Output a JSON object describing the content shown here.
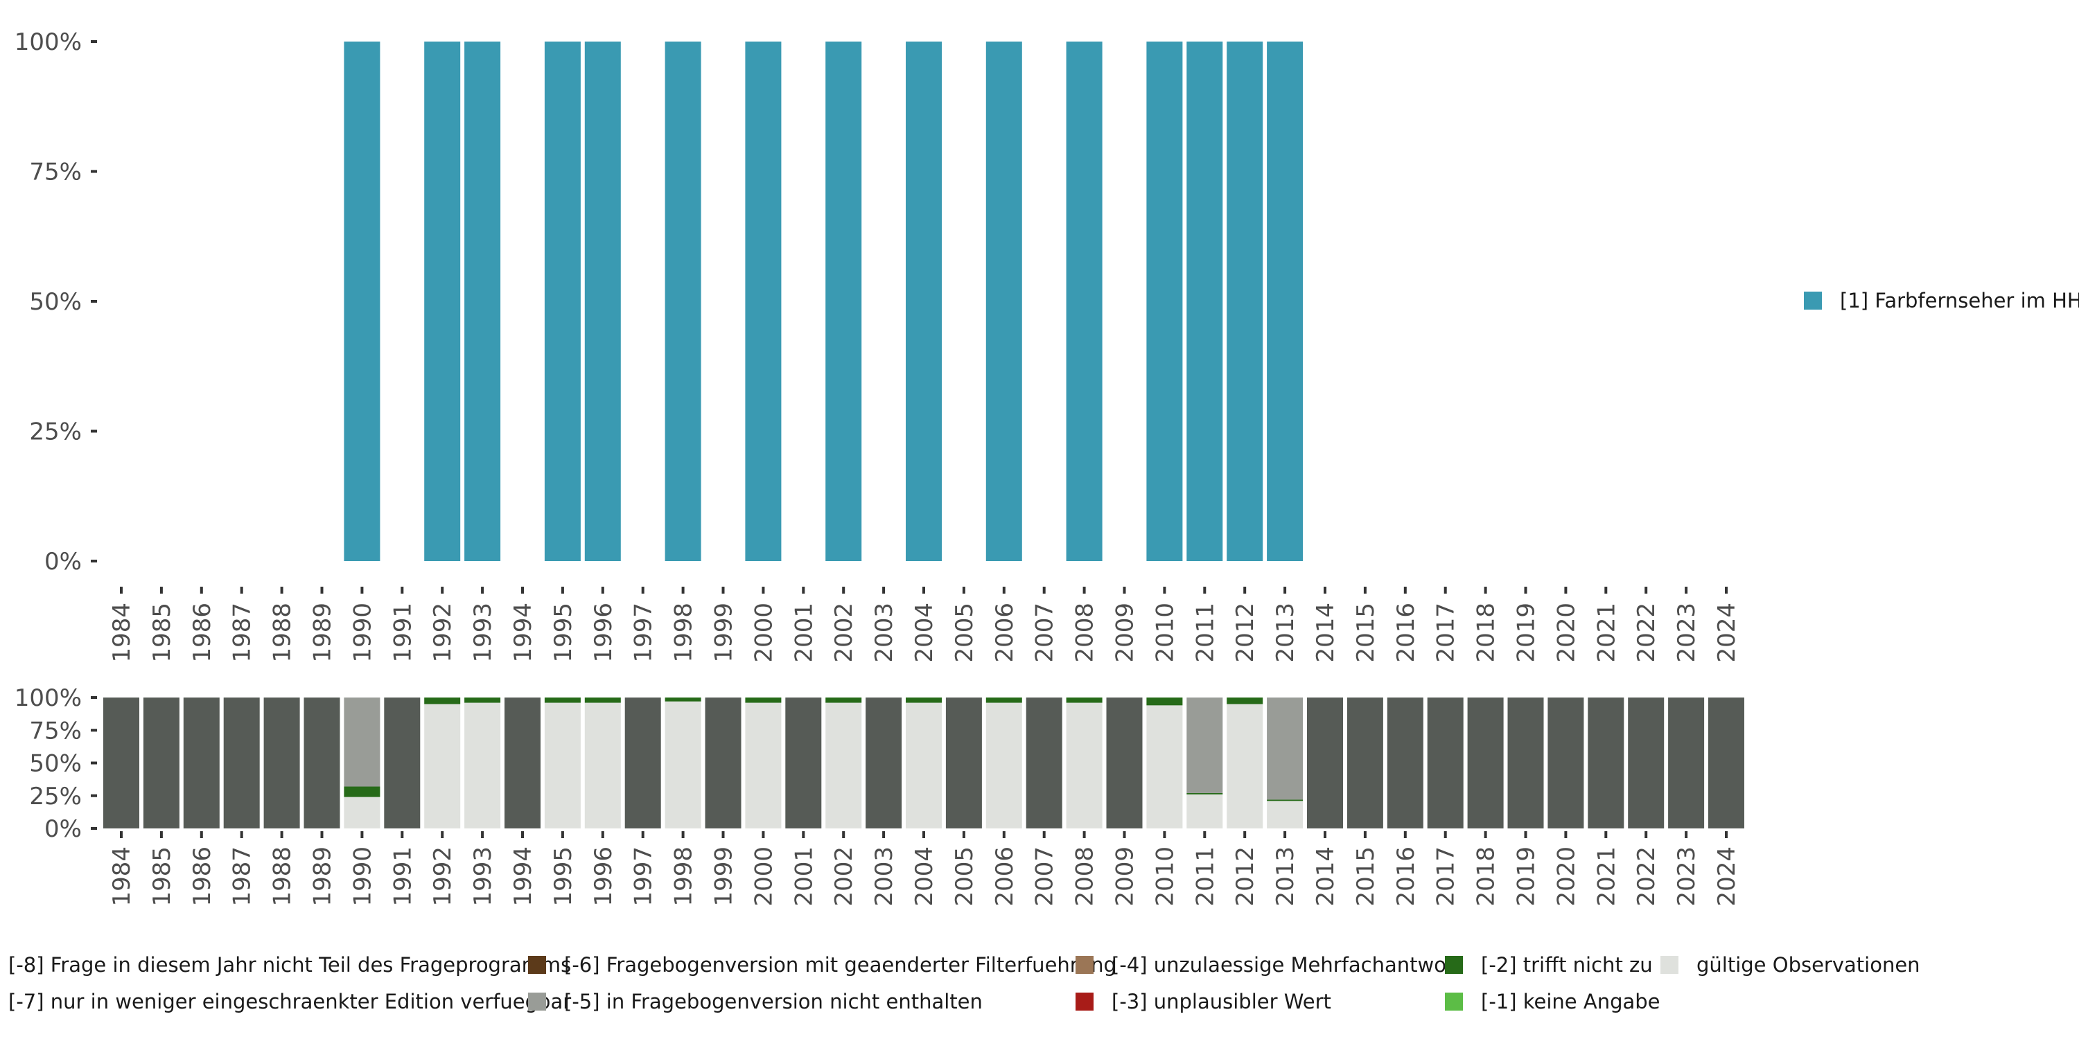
{
  "chart_data": [
    {
      "type": "bar",
      "title": "",
      "xlabel": "",
      "ylabel": "",
      "ylim": [
        0,
        100
      ],
      "y_ticks": [
        "0%",
        "25%",
        "50%",
        "75%",
        "100%"
      ],
      "categories": [
        "1984",
        "1985",
        "1986",
        "1987",
        "1988",
        "1989",
        "1990",
        "1991",
        "1992",
        "1993",
        "1994",
        "1995",
        "1996",
        "1997",
        "1998",
        "1999",
        "2000",
        "2001",
        "2002",
        "2003",
        "2004",
        "2005",
        "2006",
        "2007",
        "2008",
        "2009",
        "2010",
        "2011",
        "2012",
        "2013",
        "2014",
        "2015",
        "2016",
        "2017",
        "2018",
        "2019",
        "2020",
        "2021",
        "2022",
        "2023",
        "2024"
      ],
      "series": [
        {
          "name": "[1] Farbfernseher im HH",
          "color": "#3a9ab2",
          "values": [
            0,
            0,
            0,
            0,
            0,
            0,
            100,
            0,
            100,
            100,
            0,
            100,
            100,
            0,
            100,
            0,
            100,
            0,
            100,
            0,
            100,
            0,
            100,
            0,
            100,
            0,
            100,
            100,
            100,
            100,
            0,
            0,
            0,
            0,
            0,
            0,
            0,
            0,
            0,
            0,
            0
          ]
        }
      ],
      "legend": {
        "position": "right",
        "entries": [
          "[1] Farbfernseher im HH"
        ]
      }
    },
    {
      "type": "bar",
      "stacked": true,
      "ylim": [
        0,
        100
      ],
      "y_ticks": [
        "0%",
        "25%",
        "50%",
        "75%",
        "100%"
      ],
      "categories": [
        "1984",
        "1985",
        "1986",
        "1987",
        "1988",
        "1989",
        "1990",
        "1991",
        "1992",
        "1993",
        "1994",
        "1995",
        "1996",
        "1997",
        "1998",
        "1999",
        "2000",
        "2001",
        "2002",
        "2003",
        "2004",
        "2005",
        "2006",
        "2007",
        "2008",
        "2009",
        "2010",
        "2011",
        "2012",
        "2013",
        "2014",
        "2015",
        "2016",
        "2017",
        "2018",
        "2019",
        "2020",
        "2021",
        "2022",
        "2023",
        "2024"
      ],
      "series": [
        {
          "name": "gültige Observationen",
          "color": "#dfe1dd",
          "values": [
            0,
            0,
            0,
            0,
            0,
            0,
            24,
            0,
            95,
            96,
            0,
            96,
            96,
            0,
            97,
            0,
            96,
            0,
            96,
            0,
            96,
            0,
            96,
            0,
            96,
            0,
            94,
            26,
            95,
            21,
            0,
            0,
            0,
            0,
            0,
            0,
            0,
            0,
            0,
            0,
            0
          ]
        },
        {
          "name": "[-2] trifft nicht zu",
          "color": "#266a18",
          "values": [
            0,
            0,
            0,
            0,
            0,
            0,
            8,
            0,
            5,
            4,
            0,
            4,
            4,
            0,
            3,
            0,
            4,
            0,
            4,
            0,
            4,
            0,
            4,
            0,
            4,
            0,
            6,
            1,
            5,
            1,
            0,
            0,
            0,
            0,
            0,
            0,
            0,
            0,
            0,
            0,
            0
          ]
        },
        {
          "name": "[-5] in Fragebogenversion nicht enthalten",
          "color": "#999c97",
          "values": [
            0,
            0,
            0,
            0,
            0,
            0,
            68,
            0,
            0,
            0,
            0,
            0,
            0,
            0,
            0,
            0,
            0,
            0,
            0,
            0,
            0,
            0,
            0,
            0,
            0,
            0,
            0,
            73,
            0,
            78,
            0,
            0,
            0,
            0,
            0,
            0,
            0,
            0,
            0,
            0,
            0
          ]
        },
        {
          "name": "[-8] Frage in diesem Jahr nicht Teil des Frageprogramms",
          "color": "#565b56",
          "values": [
            100,
            100,
            100,
            100,
            100,
            100,
            0,
            100,
            0,
            0,
            100,
            0,
            0,
            100,
            0,
            100,
            0,
            100,
            0,
            100,
            0,
            100,
            0,
            100,
            0,
            100,
            0,
            0,
            0,
            0,
            100,
            100,
            100,
            100,
            100,
            100,
            100,
            100,
            100,
            100,
            100
          ]
        }
      ],
      "legend": {
        "position": "bottom",
        "entries": [
          {
            "label": "[-8] Frage in diesem Jahr nicht Teil des Frageprogramms",
            "color": "#565b56"
          },
          {
            "label": "[-6] Fragebogenversion mit geaenderter Filterfuehrung",
            "color": "#5c3a1a"
          },
          {
            "label": "[-4] unzulaessige Mehrfachantwort",
            "color": "#9b7656"
          },
          {
            "label": "[-2] trifft nicht zu",
            "color": "#266a18"
          },
          {
            "label": "gültige Observationen",
            "color": "#dfe1dd"
          },
          {
            "label": "[-7] nur in weniger eingeschraenkter Edition verfuegbar",
            "color": "#2e312d"
          },
          {
            "label": "[-5] in Fragebogenversion nicht enthalten",
            "color": "#999c97"
          },
          {
            "label": "[-3] unplausibler Wert",
            "color": "#a81c18"
          },
          {
            "label": "[-1] keine Angabe",
            "color": "#5cbd46"
          }
        ]
      }
    }
  ]
}
